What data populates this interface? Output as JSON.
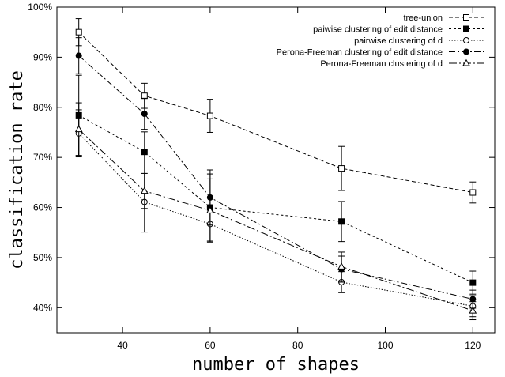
{
  "chart_data": {
    "type": "line",
    "xlabel": "number of shapes",
    "ylabel": "classification rate",
    "xlim": [
      25,
      125
    ],
    "ylim": [
      35,
      100
    ],
    "x_ticks": [
      40,
      60,
      80,
      100,
      120
    ],
    "y_ticks": [
      40,
      50,
      60,
      70,
      80,
      90,
      100
    ],
    "y_tick_labels": [
      "40%",
      "50%",
      "60%",
      "70%",
      "80%",
      "90%",
      "100%"
    ],
    "grid": false,
    "legend_position": "top-right",
    "series": [
      {
        "name": "tree-union",
        "marker": "open-square",
        "dash": "dashed",
        "x": [
          30,
          45,
          60,
          90,
          120
        ],
        "y": [
          95.0,
          82.3,
          78.3,
          67.8,
          63.0
        ],
        "err": [
          2.7,
          2.5,
          3.3,
          4.4,
          2.1
        ]
      },
      {
        "name": "paiwise clustering of edit distance",
        "marker": "filled-square",
        "dash": "dotted-short",
        "x": [
          30,
          45,
          60,
          90,
          120
        ],
        "y": [
          78.4,
          71.1,
          60.0,
          57.2,
          45.0
        ],
        "err": [
          8.0,
          4.0,
          6.7,
          4.0,
          2.3
        ]
      },
      {
        "name": "pairwise clustering of d",
        "marker": "open-circle",
        "dash": "dotted",
        "x": [
          30,
          45,
          60,
          90,
          120
        ],
        "y": [
          74.8,
          61.1,
          56.7,
          45.1,
          40.3
        ],
        "err": [
          4.7,
          6.0,
          3.4,
          2.1,
          2.1
        ]
      },
      {
        "name": "Perona-Freeman clustering of edit distance",
        "marker": "filled-circle",
        "dash": "dash-dot",
        "x": [
          30,
          45,
          60,
          90,
          120
        ],
        "y": [
          90.3,
          78.7,
          62.0,
          47.7,
          41.7
        ],
        "err": [
          3.6,
          3.1,
          5.5,
          2.6,
          1.8
        ]
      },
      {
        "name": "Perona-Freeman clustering of d",
        "marker": "open-triangle",
        "dash": "dash-dot-long",
        "x": [
          30,
          45,
          60,
          90,
          120
        ],
        "y": [
          75.6,
          63.3,
          59.4,
          48.2,
          39.4
        ],
        "err": [
          5.3,
          3.5,
          6.3,
          2.9,
          1.8
        ]
      }
    ]
  }
}
